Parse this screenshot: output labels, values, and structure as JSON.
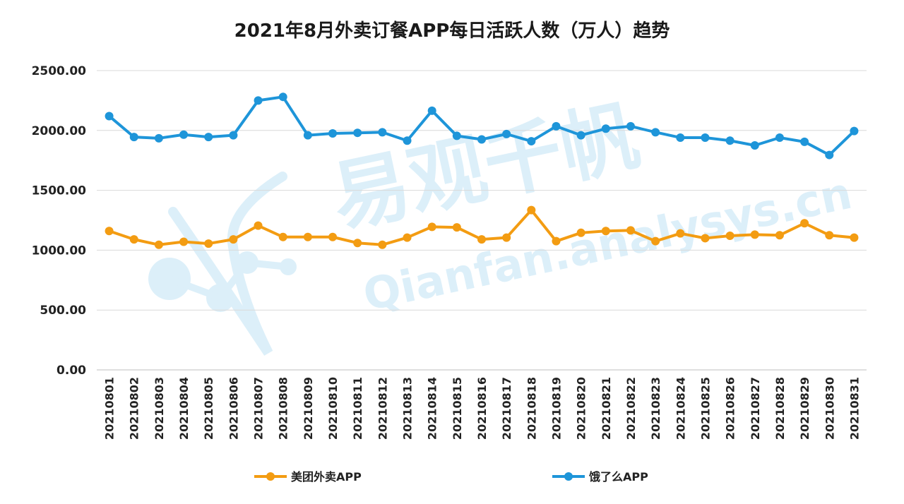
{
  "colors": {
    "meituan": "#F39C12",
    "eleme": "#1E95D9",
    "grid": "#d9d9d9",
    "watermark": "#d6ecf8"
  },
  "chart_data": {
    "type": "line",
    "title": "2021年8月外卖订餐APP每日活跃人数（万人）趋势",
    "xlabel": "",
    "ylabel": "",
    "ylim": [
      0,
      2500
    ],
    "yticks": [
      "0.00",
      "500.00",
      "1000.00",
      "1500.00",
      "2000.00",
      "2500.00"
    ],
    "grid": true,
    "legend_position": "bottom",
    "categories": [
      "20210801",
      "20210802",
      "20210803",
      "20210804",
      "20210805",
      "20210806",
      "20210807",
      "20210808",
      "20210809",
      "20210810",
      "20210811",
      "20210812",
      "20210813",
      "20210814",
      "20210815",
      "20210816",
      "20210817",
      "20210818",
      "20210819",
      "20210820",
      "20210821",
      "20210822",
      "20210823",
      "20210824",
      "20210825",
      "20210826",
      "20210827",
      "20210828",
      "20210829",
      "20210830",
      "20210831"
    ],
    "series": [
      {
        "name": "美团外卖APP",
        "color_key": "meituan",
        "values": [
          1160,
          1090,
          1045,
          1070,
          1055,
          1090,
          1205,
          1110,
          1110,
          1110,
          1060,
          1045,
          1105,
          1195,
          1190,
          1090,
          1105,
          1335,
          1075,
          1145,
          1160,
          1165,
          1075,
          1140,
          1100,
          1120,
          1130,
          1125,
          1225,
          1125,
          1105
        ]
      },
      {
        "name": "饿了么APP",
        "color_key": "eleme",
        "values": [
          2120,
          1945,
          1935,
          1965,
          1945,
          1960,
          2250,
          2280,
          1960,
          1975,
          1980,
          1985,
          1915,
          2165,
          1955,
          1925,
          1970,
          1910,
          2035,
          1960,
          2015,
          2035,
          1985,
          1940,
          1940,
          1915,
          1875,
          1940,
          1905,
          1795,
          1995
        ]
      }
    ]
  }
}
